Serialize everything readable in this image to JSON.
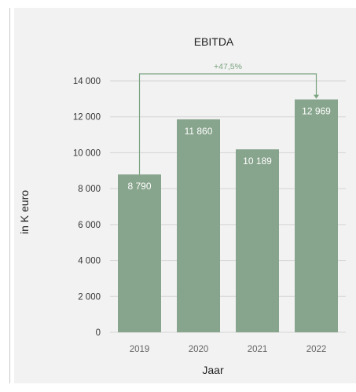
{
  "chart_data": {
    "type": "bar",
    "title": "EBITDA",
    "xlabel": "Jaar",
    "ylabel": "in K euro",
    "categories": [
      "2019",
      "2020",
      "2021",
      "2022"
    ],
    "values": [
      8790,
      11860,
      10189,
      12969
    ],
    "value_labels": [
      "8 790",
      "11 860",
      "10 189",
      "12 969"
    ],
    "ylim": [
      0,
      14000
    ],
    "yticks": [
      0,
      2000,
      4000,
      6000,
      8000,
      10000,
      12000,
      14000
    ],
    "ytick_labels": [
      "0",
      "2 000",
      "4 000",
      "6 000",
      "8 000",
      "10 000",
      "12 000",
      "14 000"
    ],
    "grid": true,
    "bar_color": "#87a48c",
    "annotation": {
      "text": "+47,5%",
      "from": "2019",
      "to": "2022",
      "color": "#7aa37f"
    }
  }
}
